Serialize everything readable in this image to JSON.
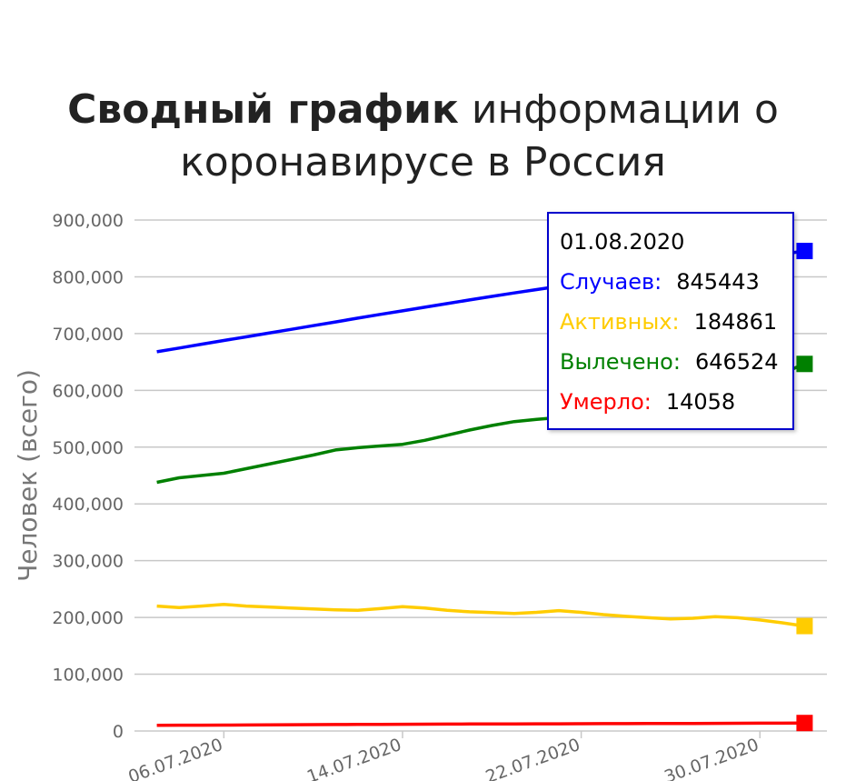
{
  "title": {
    "bold": "Сводный график",
    "line1_rest": " информации о",
    "line2": "коронавирусе в Россия"
  },
  "chart_data": {
    "type": "line",
    "ylabel": "Человек (всего)",
    "ylim": [
      0,
      900000
    ],
    "yticks": [
      0,
      100000,
      200000,
      300000,
      400000,
      500000,
      600000,
      700000,
      800000,
      900000
    ],
    "ytick_labels": [
      "0",
      "100,000",
      "200,000",
      "300,000",
      "400,000",
      "500,000",
      "600,000",
      "700,000",
      "800,000",
      "900,000"
    ],
    "xlim": [
      "2020-07-02",
      "2020-08-02"
    ],
    "xtick_labels": [
      "06.07.2020",
      "14.07.2020",
      "22.07.2020",
      "30.07.2020"
    ],
    "x": [
      "2020-07-03",
      "2020-07-04",
      "2020-07-05",
      "2020-07-06",
      "2020-07-07",
      "2020-07-08",
      "2020-07-09",
      "2020-07-10",
      "2020-07-11",
      "2020-07-12",
      "2020-07-13",
      "2020-07-14",
      "2020-07-15",
      "2020-07-16",
      "2020-07-17",
      "2020-07-18",
      "2020-07-19",
      "2020-07-20",
      "2020-07-21",
      "2020-07-22",
      "2020-07-23",
      "2020-07-24",
      "2020-07-25",
      "2020-07-26",
      "2020-07-27",
      "2020-07-28",
      "2020-07-29",
      "2020-07-30",
      "2020-07-31",
      "2020-08-01"
    ],
    "series": [
      {
        "name": "Случаев",
        "color": "#0000ff",
        "values": [
          667883,
          674515,
          681251,
          687862,
          694230,
          700792,
          707301,
          713936,
          720547,
          727162,
          733699,
          739947,
          746369,
          752797,
          759203,
          765437,
          771546,
          777486,
          783328,
          789190,
          795038,
          800849,
          806720,
          812485,
          818120,
          823515,
          828990,
          834499,
          839981,
          845443
        ]
      },
      {
        "name": "Активных",
        "color": "#ffcc00",
        "values": [
          220000,
          217500,
          220000,
          223000,
          220000,
          218500,
          216500,
          215000,
          213500,
          212500,
          215500,
          219000,
          216500,
          212500,
          210000,
          208500,
          207000,
          209000,
          212000,
          209000,
          205000,
          202000,
          199500,
          197500,
          198500,
          201500,
          199500,
          195500,
          190500,
          184861
        ]
      },
      {
        "name": "Вылечено",
        "color": "#008000",
        "values": [
          438000,
          446000,
          450000,
          454000,
          462000,
          470000,
          478000,
          486000,
          495000,
          499000,
          502000,
          505000,
          512000,
          521000,
          530000,
          538000,
          545000,
          549000,
          552000,
          556000,
          563000,
          572000,
          580000,
          587000,
          593000,
          600000,
          607000,
          617000,
          630000,
          646524
        ]
      },
      {
        "name": "Умерло",
        "color": "#ff0000",
        "values": [
          10000,
          10200,
          10300,
          10400,
          10600,
          10800,
          11000,
          11200,
          11300,
          11500,
          11700,
          11800,
          12000,
          12200,
          12300,
          12400,
          12500,
          12600,
          12700,
          12800,
          12900,
          13000,
          13100,
          13200,
          13300,
          13400,
          13600,
          13700,
          13850,
          14058
        ]
      }
    ],
    "tooltip": {
      "date": "01.08.2020",
      "rows": [
        {
          "label": "Случаев:",
          "value": "845443",
          "color": "#0000ff"
        },
        {
          "label": "Активных:",
          "value": "184861",
          "color": "#ffcc00"
        },
        {
          "label": "Вылечено:",
          "value": "646524",
          "color": "#008000"
        },
        {
          "label": "Умерло:",
          "value": "14058",
          "color": "#ff0000"
        }
      ]
    }
  }
}
